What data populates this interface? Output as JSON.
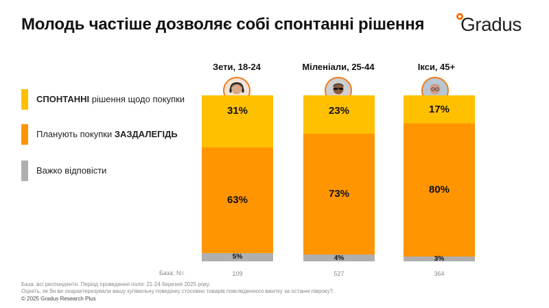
{
  "title": "Молодь частіше дозволяє собі спонтанні рішення",
  "logo": {
    "text": "Gradus"
  },
  "legend": [
    {
      "bold": "СПОНТАННІ",
      "rest": " рішення щодо покупки",
      "bold_first": true,
      "color": "#FFC000"
    },
    {
      "bold": "ЗАЗДАЛЕГІДЬ",
      "rest": "Планують покупки ",
      "bold_first": false,
      "color": "#FF9500"
    },
    {
      "bold": "",
      "rest": "Важко відповісти",
      "bold_first": false,
      "color": "#AFAFAF"
    }
  ],
  "groups": [
    {
      "label": "Зети, 18-24",
      "icon": "gen-z-person-avatar-icon"
    },
    {
      "label": "Міленіали, 25-44",
      "icon": "millennial-person-avatar-icon"
    },
    {
      "label": "Ікси, 45+",
      "icon": "gen-x-person-avatar-icon"
    }
  ],
  "base": {
    "label": "База: N=",
    "values": [
      "109",
      "527",
      "364"
    ]
  },
  "footnotes": {
    "line1": "База: всі респонденти. Період проведення поля: 21-24 березня 2025 року.",
    "line2": "Оцініть, як би ви охарактеризували вашу купівельну поведінку стосовно товарів повсякденного вжитку за останні півроку?.",
    "copyright": "© 2025 Gradus Research Plus"
  },
  "chart_data": {
    "type": "bar",
    "stacked": true,
    "normalized_percent": true,
    "categories": [
      "Зети, 18-24",
      "Міленіали, 25-44",
      "Ікси, 45+"
    ],
    "series": [
      {
        "name": "СПОНТАННІ рішення щодо покупки",
        "values": [
          31,
          23,
          17
        ],
        "labels": [
          "31%",
          "23%",
          "17%"
        ],
        "color": "#FFC000"
      },
      {
        "name": "Планують покупки ЗАЗДАЛЕГІДЬ",
        "values": [
          63,
          73,
          80
        ],
        "labels": [
          "63%",
          "73%",
          "80%"
        ],
        "color": "#FF9500"
      },
      {
        "name": "Важко відповісти",
        "values": [
          5,
          4,
          3
        ],
        "labels": [
          "5%",
          "4%",
          "3%"
        ],
        "color": "#AFAFAF"
      }
    ],
    "legend_position": "left",
    "grid": false
  }
}
